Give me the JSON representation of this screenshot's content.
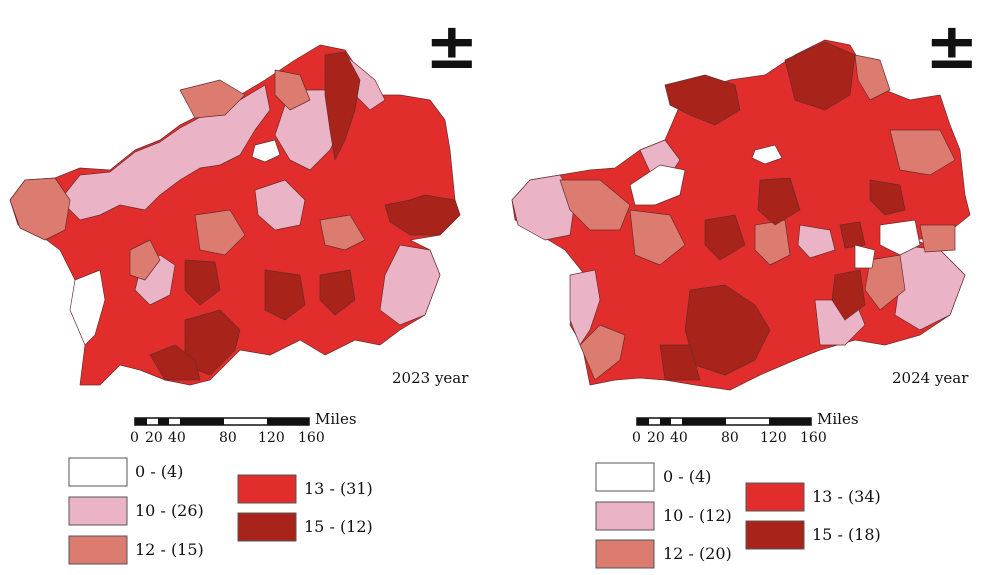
{
  "maps": [
    {
      "year_label": "2023 year",
      "north_symbol": "±",
      "scale": {
        "unit": "Miles",
        "ticks": [
          "0",
          "20",
          "40",
          "80",
          "120",
          "160"
        ]
      },
      "legend": [
        {
          "label": "0 - (4)",
          "color": "#ffffff"
        },
        {
          "label": "10 - (26)",
          "color": "#eab3c6"
        },
        {
          "label": "12 - (15)",
          "color": "#dc7b6f"
        },
        {
          "label": "13 - (31)",
          "color": "#e22d2d"
        },
        {
          "label": "15 - (12)",
          "color": "#a8231a"
        }
      ]
    },
    {
      "year_label": "2024 year",
      "north_symbol": "±",
      "scale": {
        "unit": "Miles",
        "ticks": [
          "0",
          "20",
          "40",
          "80",
          "120",
          "160"
        ]
      },
      "legend": [
        {
          "label": "0 - (4)",
          "color": "#ffffff"
        },
        {
          "label": "10 - (12)",
          "color": "#eab3c6"
        },
        {
          "label": "12 - (20)",
          "color": "#dc7b6f"
        },
        {
          "label": "13 - (34)",
          "color": "#e22d2d"
        },
        {
          "label": "15 - (18)",
          "color": "#a8231a"
        }
      ]
    }
  ]
}
